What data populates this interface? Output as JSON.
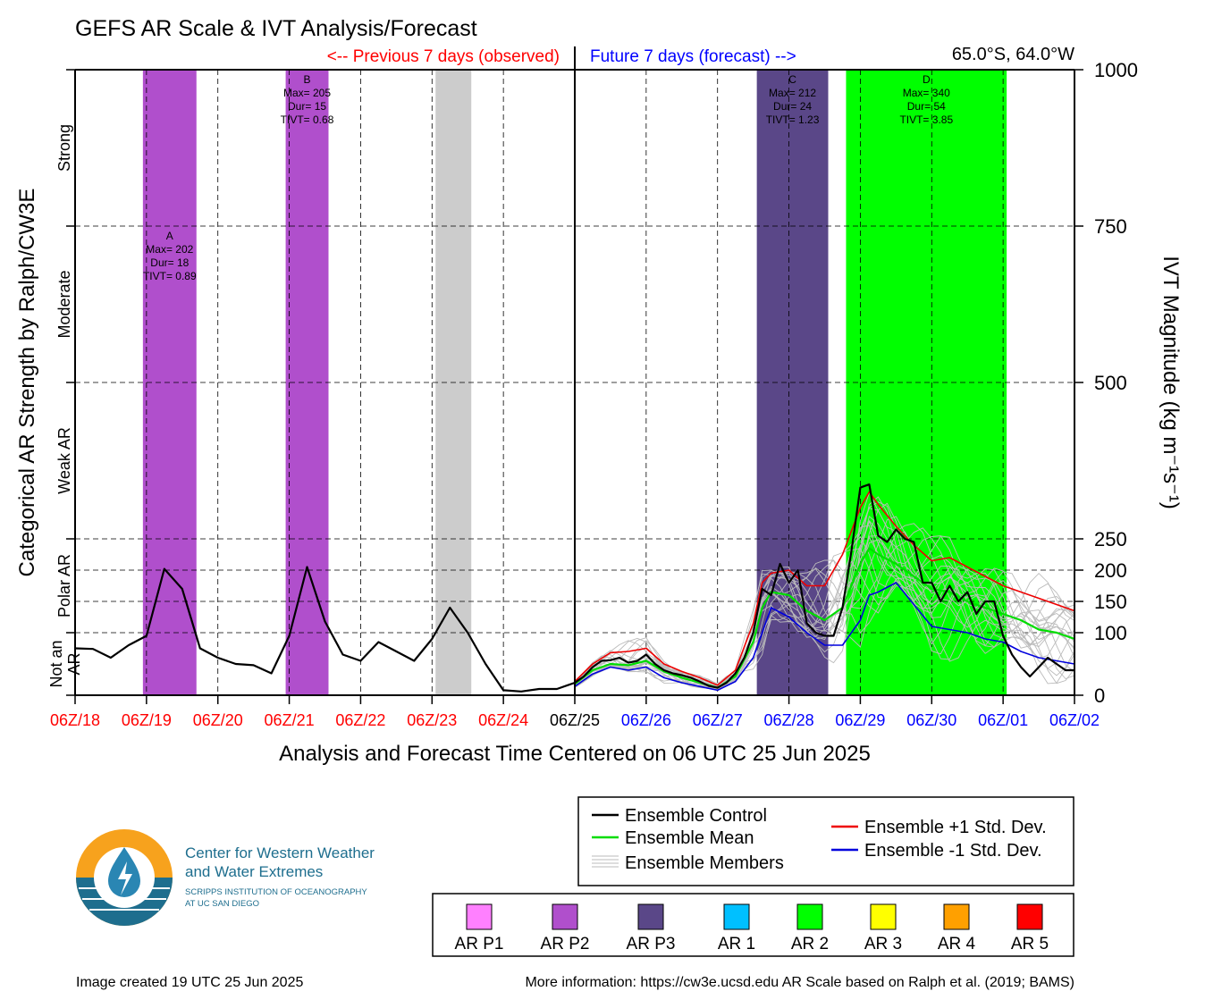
{
  "title": "GEFS AR Scale & IVT Analysis/Forecast",
  "prev_label": "<-- Previous 7 days (observed)",
  "future_label": "Future 7 days (forecast) -->",
  "location": "65.0°S, 64.0°W",
  "colors": {
    "prev": "#ff0000",
    "future": "#0000ff",
    "control": "#000000",
    "mean": "#00dd00",
    "plus_std": "#ee0000",
    "minus_std": "#0000dd",
    "members": "#bbbbbb"
  },
  "chart_data": {
    "type": "line",
    "title": "GEFS AR Scale & IVT Analysis/Forecast",
    "xlabel": "Analysis and Forecast Time Centered on 06 UTC 25 Jun 2025",
    "ylabel_left": "Categorical AR Strength by Ralph/CW3E",
    "ylabel_right": "IVT Magnitude (kg m⁻¹s⁻¹)",
    "ylim": [
      0,
      1000
    ],
    "xlim_days": [
      0,
      14
    ],
    "x_ticks": [
      {
        "label": "06Z/18",
        "color": "#ff0000"
      },
      {
        "label": "06Z/19",
        "color": "#ff0000"
      },
      {
        "label": "06Z/20",
        "color": "#ff0000"
      },
      {
        "label": "06Z/21",
        "color": "#ff0000"
      },
      {
        "label": "06Z/22",
        "color": "#ff0000"
      },
      {
        "label": "06Z/23",
        "color": "#ff0000"
      },
      {
        "label": "06Z/24",
        "color": "#ff0000"
      },
      {
        "label": "06Z/25",
        "color": "#000000"
      },
      {
        "label": "06Z/26",
        "color": "#0000ff"
      },
      {
        "label": "06Z/27",
        "color": "#0000ff"
      },
      {
        "label": "06Z/28",
        "color": "#0000ff"
      },
      {
        "label": "06Z/29",
        "color": "#0000ff"
      },
      {
        "label": "06Z/30",
        "color": "#0000ff"
      },
      {
        "label": "06Z/01",
        "color": "#0000ff"
      },
      {
        "label": "06Z/02",
        "color": "#0000ff"
      }
    ],
    "y_ticks_right": [
      "0",
      "100",
      "150",
      "200",
      "250",
      "500",
      "750",
      "1000"
    ],
    "y_tick_values": [
      0,
      100,
      150,
      200,
      250,
      500,
      750,
      1000
    ],
    "categories_left": [
      {
        "label": "Not an AR",
        "lines": [
          "Not an",
          "AR"
        ],
        "lo": 0,
        "hi": 100
      },
      {
        "label": "Polar AR",
        "lines": [
          "Polar AR"
        ],
        "lo": 100,
        "hi": 250
      },
      {
        "label": "Weak AR",
        "lines": [
          "Weak AR"
        ],
        "lo": 250,
        "hi": 500
      },
      {
        "label": "Moderate",
        "lines": [
          "Moderate"
        ],
        "lo": 500,
        "hi": 750
      },
      {
        "label": "Strong",
        "lines": [
          "Strong"
        ],
        "lo": 750,
        "hi": 1000
      }
    ],
    "ar_events": [
      {
        "id": "A",
        "start": 0.95,
        "end": 1.7,
        "color": "#b04fcc",
        "label_y": 750,
        "lines": [
          "A",
          "Max= 202",
          "Dur= 18",
          "TIVT= 0.89"
        ]
      },
      {
        "id": "B",
        "start": 2.95,
        "end": 3.55,
        "color": "#b04fcc",
        "label_y": 1000,
        "lines": [
          "B",
          "Max= 205",
          "Dur= 15",
          "TIVT= 0.68"
        ]
      },
      {
        "id": "gray",
        "start": 5.05,
        "end": 5.55,
        "color": "#cccccc",
        "label_y": null,
        "lines": []
      },
      {
        "id": "C",
        "start": 9.55,
        "end": 10.55,
        "color": "#5a4788",
        "label_y": 1000,
        "lines": [
          "C",
          "Max= 212",
          "Dur= 24",
          "TIVT= 1.23"
        ]
      },
      {
        "id": "D",
        "start": 10.8,
        "end": 13.05,
        "color": "#00ff00",
        "label_y": 1000,
        "lines": [
          "D",
          "Max= 340",
          "Dur= 54",
          "TIVT= 3.85"
        ]
      }
    ],
    "observed": {
      "name": "Ensemble Control",
      "x": [
        0,
        0.25,
        0.5,
        0.75,
        1,
        1.25,
        1.5,
        1.75,
        2,
        2.25,
        2.5,
        2.75,
        3,
        3.25,
        3.5,
        3.75,
        4,
        4.25,
        4.5,
        4.75,
        5,
        5.25,
        5.5,
        5.75,
        6,
        6.25,
        6.5,
        6.75,
        7
      ],
      "y": [
        75,
        74,
        60,
        80,
        95,
        202,
        170,
        75,
        60,
        50,
        48,
        35,
        95,
        205,
        118,
        65,
        55,
        85,
        70,
        55,
        90,
        140,
        100,
        50,
        8,
        6,
        10,
        10,
        20
      ]
    },
    "series": [
      {
        "name": "Ensemble Control",
        "x": [
          7,
          7.125,
          7.25,
          7.375,
          7.5,
          7.625,
          7.75,
          7.875,
          8,
          8.125,
          8.25,
          8.375,
          8.5,
          8.625,
          8.75,
          8.875,
          9,
          9.125,
          9.25,
          9.375,
          9.5,
          9.625,
          9.75,
          9.875,
          10,
          10.125,
          10.25,
          10.375,
          10.5,
          10.625,
          10.75,
          10.875,
          11,
          11.125,
          11.25,
          11.375,
          11.5,
          11.625,
          11.75,
          11.875,
          12,
          12.125,
          12.25,
          12.375,
          12.5,
          12.625,
          12.75,
          12.875,
          13,
          13.125,
          13.25,
          13.375,
          13.5,
          13.625,
          13.75,
          13.875,
          14
        ],
        "y": [
          20,
          30,
          45,
          55,
          56,
          60,
          52,
          55,
          65,
          50,
          40,
          35,
          32,
          28,
          22,
          15,
          12,
          20,
          35,
          60,
          100,
          170,
          160,
          210,
          180,
          200,
          115,
          100,
          95,
          95,
          140,
          230,
          332,
          337,
          255,
          245,
          265,
          250,
          245,
          180,
          180,
          150,
          175,
          150,
          165,
          130,
          150,
          150,
          95,
          65,
          45,
          30,
          45,
          60,
          50,
          40,
          40
        ]
      },
      {
        "name": "Ensemble Mean",
        "x": [
          7,
          7.25,
          7.5,
          7.75,
          8,
          8.25,
          8.5,
          8.75,
          9,
          9.25,
          9.5,
          9.625,
          9.75,
          10,
          10.25,
          10.5,
          10.75,
          11,
          11.125,
          11.25,
          11.5,
          11.75,
          12,
          12.25,
          12.5,
          12.75,
          13,
          13.25,
          13.5,
          13.75,
          14
        ],
        "y": [
          18,
          40,
          50,
          48,
          55,
          38,
          28,
          20,
          12,
          30,
          85,
          140,
          165,
          160,
          135,
          120,
          140,
          210,
          235,
          225,
          210,
          190,
          170,
          165,
          150,
          140,
          130,
          120,
          105,
          100,
          90
        ]
      },
      {
        "name": "Ensemble +1 Std. Dev.",
        "x": [
          7,
          7.25,
          7.5,
          7.75,
          8,
          8.25,
          8.5,
          8.75,
          9,
          9.25,
          9.5,
          9.625,
          9.75,
          10,
          10.25,
          10.5,
          10.75,
          11,
          11.125,
          11.25,
          11.5,
          11.75,
          12,
          12.25,
          12.5,
          12.75,
          13,
          13.25,
          13.5,
          13.75,
          14
        ],
        "y": [
          22,
          50,
          68,
          70,
          75,
          50,
          38,
          28,
          16,
          40,
          115,
          180,
          195,
          200,
          175,
          175,
          225,
          300,
          325,
          305,
          270,
          240,
          215,
          220,
          205,
          190,
          175,
          165,
          155,
          145,
          135
        ]
      },
      {
        "name": "Ensemble -1 Std. Dev.",
        "x": [
          7,
          7.25,
          7.5,
          7.75,
          8,
          8.25,
          8.5,
          8.75,
          9,
          9.25,
          9.5,
          9.625,
          9.75,
          10,
          10.25,
          10.5,
          10.75,
          11,
          11.125,
          11.25,
          11.5,
          11.75,
          12,
          12.25,
          12.5,
          12.75,
          13,
          13.25,
          13.5,
          13.75,
          14
        ],
        "y": [
          14,
          34,
          45,
          40,
          45,
          28,
          20,
          14,
          8,
          22,
          60,
          100,
          140,
          125,
          100,
          80,
          80,
          120,
          160,
          165,
          180,
          145,
          110,
          105,
          100,
          90,
          85,
          70,
          60,
          55,
          50
        ]
      }
    ]
  },
  "legend": {
    "lines": [
      {
        "label": "Ensemble Control",
        "color": "#000000"
      },
      {
        "label": "Ensemble Mean",
        "color": "#00dd00"
      },
      {
        "label": "Ensemble Members",
        "color": "#bbbbbb"
      },
      {
        "label": "Ensemble +1 Std. Dev.",
        "color": "#ee0000"
      },
      {
        "label": "Ensemble -1 Std. Dev.",
        "color": "#0000dd"
      }
    ],
    "scale": [
      {
        "label": "AR P1",
        "color": "#ff80ff"
      },
      {
        "label": "AR P2",
        "color": "#b04fcc"
      },
      {
        "label": "AR P3",
        "color": "#5a4788"
      },
      {
        "label": "AR 1",
        "color": "#00c0ff"
      },
      {
        "label": "AR 2",
        "color": "#00ff00"
      },
      {
        "label": "AR 3",
        "color": "#ffff00"
      },
      {
        "label": "AR 4",
        "color": "#ffa000"
      },
      {
        "label": "AR 5",
        "color": "#ff0000"
      }
    ]
  },
  "logo": {
    "line1": "Center for Western Weather",
    "line2": "and Water Extremes",
    "line3": "SCRIPPS INSTITUTION OF OCEANOGRAPHY",
    "line4": "AT UC SAN DIEGO",
    "icon": "water-drop-lightning-icon"
  },
  "footer": {
    "created": "Image created 19 UTC 25 Jun 2025",
    "info": "More information: https://cw3e.ucsd.edu AR Scale based on Ralph et al. (2019; BAMS)"
  }
}
